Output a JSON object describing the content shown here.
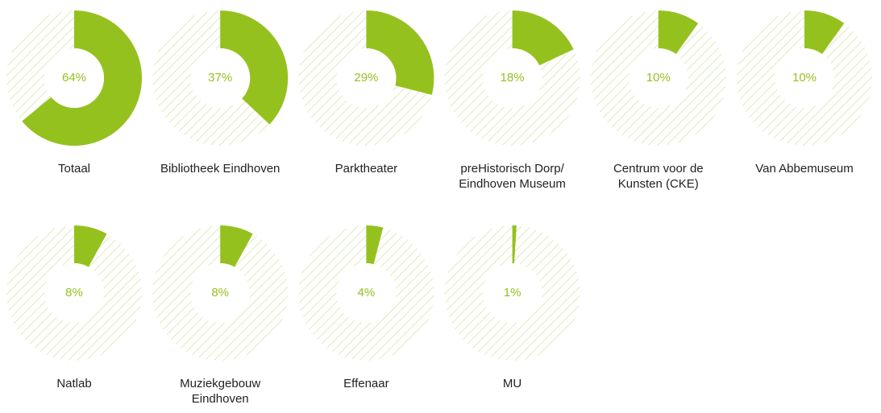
{
  "chart_data": [
    {
      "type": "donut",
      "title": "Totaal",
      "values": [
        64
      ],
      "value_labels": [
        "64%"
      ],
      "color": "#95c11f"
    },
    {
      "type": "donut",
      "title": "Bibliotheek Eindhoven",
      "values": [
        37
      ],
      "value_labels": [
        "37%"
      ],
      "color": "#95c11f"
    },
    {
      "type": "donut",
      "title": "Parktheater",
      "values": [
        29
      ],
      "value_labels": [
        "29%"
      ],
      "color": "#95c11f"
    },
    {
      "type": "donut",
      "title": "preHistorisch Dorp/ Eindhoven Museum",
      "values": [
        18
      ],
      "value_labels": [
        "18%"
      ],
      "color": "#95c11f"
    },
    {
      "type": "donut",
      "title": "Centrum voor de Kunsten (CKE)",
      "values": [
        10
      ],
      "value_labels": [
        "10%"
      ],
      "color": "#95c11f"
    },
    {
      "type": "donut",
      "title": "Van Abbemuseum",
      "values": [
        10
      ],
      "value_labels": [
        "10%"
      ],
      "color": "#95c11f"
    },
    {
      "type": "donut",
      "title": "Natlab",
      "values": [
        8
      ],
      "value_labels": [
        "8%"
      ],
      "color": "#95c11f"
    },
    {
      "type": "donut",
      "title": "Muziekgebouw Eindhoven",
      "values": [
        8
      ],
      "value_labels": [
        "8%"
      ],
      "color": "#95c11f"
    },
    {
      "type": "donut",
      "title": "Effenaar",
      "values": [
        4
      ],
      "value_labels": [
        "4%"
      ],
      "color": "#95c11f"
    },
    {
      "type": "donut",
      "title": "MU",
      "values": [
        1
      ],
      "value_labels": [
        "1%"
      ],
      "color": "#95c11f"
    }
  ]
}
